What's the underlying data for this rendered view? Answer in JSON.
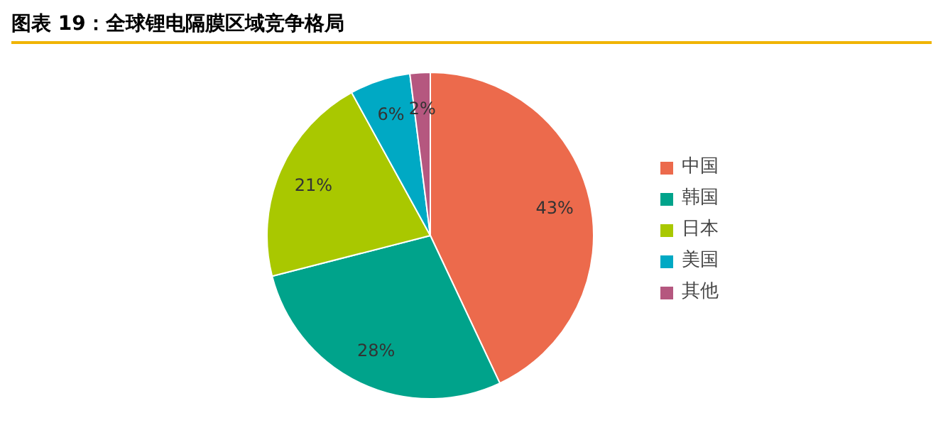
{
  "chart_data": {
    "type": "pie",
    "title": "图表 19：全球锂电隔膜区域竞争格局",
    "categories": [
      "中国",
      "韩国",
      "日本",
      "美国",
      "其他"
    ],
    "values": [
      43,
      28,
      21,
      6,
      2
    ],
    "colors": [
      "#ec6a4c",
      "#00a38b",
      "#a9c800",
      "#00a9c4",
      "#b5577f"
    ],
    "value_labels": [
      "43%",
      "28%",
      "21%",
      "6%",
      "2%"
    ],
    "legend": "right"
  }
}
